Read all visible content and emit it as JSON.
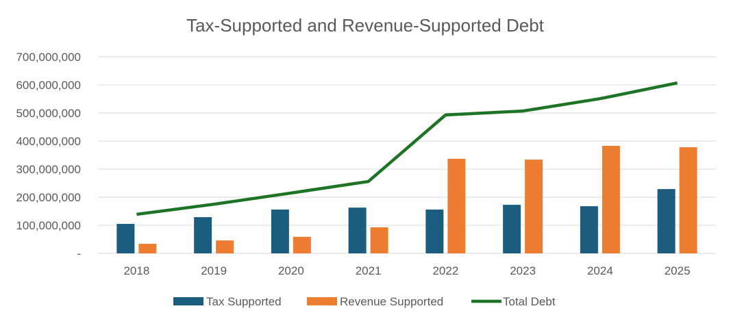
{
  "chart_data": {
    "type": "bar",
    "title": "Tax-Supported and Revenue-Supported Debt",
    "categories": [
      "2018",
      "2019",
      "2020",
      "2021",
      "2022",
      "2023",
      "2024",
      "2025"
    ],
    "series": [
      {
        "name": "Tax Supported",
        "kind": "bar",
        "color": "#1b5c7f",
        "values": [
          105000000,
          129000000,
          156000000,
          163000000,
          156000000,
          173000000,
          168000000,
          229000000
        ]
      },
      {
        "name": "Revenue Supported",
        "kind": "bar",
        "color": "#ed7d31",
        "values": [
          34000000,
          46000000,
          59000000,
          93000000,
          337000000,
          334000000,
          383000000,
          378000000
        ]
      },
      {
        "name": "Total Debt",
        "kind": "line",
        "color": "#1e7425",
        "values": [
          139000000,
          175000000,
          215000000,
          256000000,
          493000000,
          507000000,
          551000000,
          607000000
        ]
      }
    ],
    "ylim": [
      0,
      700000000
    ],
    "yticks": [
      0,
      100000000,
      200000000,
      300000000,
      400000000,
      500000000,
      600000000,
      700000000
    ],
    "ytick_labels": [
      "-",
      "100,000,000",
      "200,000,000",
      "300,000,000",
      "400,000,000",
      "500,000,000",
      "600,000,000",
      "700,000,000"
    ],
    "grid": true,
    "legend": "bottom"
  }
}
